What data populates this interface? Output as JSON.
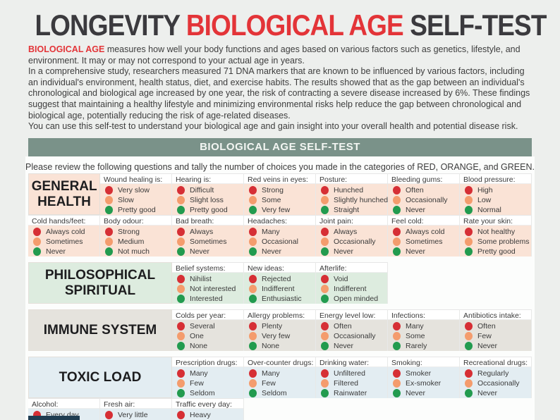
{
  "title": {
    "part1": "LONGEVITY ",
    "part2": "BIOLOGICAL AGE",
    "part3": " SELF-TEST"
  },
  "intro": {
    "lead": "BIOLOGICAL AGE",
    "p1_rest": " measures how well your body functions and ages based on various factors such as genetics, lifestyle, and environment. It may or may not correspond to your actual age in years.",
    "p2": "In a comprehensive study, researchers measured 71 DNA markers that are known to be influenced by various factors, including an individual's environment, health status, diet, and exercise habits. The results showed that as the gap between an individual's chronological and biological age increased by one year, the risk of contracting a severe disease increased by 6%. These findings suggest that maintaining a healthy lifestyle and minimizing environmental risks help reduce the gap between chronological and biological age, potentially reducing the risk of age-related diseases.",
    "p3": "You can use this self-test to understand your biological age and gain insight into your overall health and potential disease risk."
  },
  "banner": "BIOLOGICAL AGE SELF-TEST",
  "instruction": "Please review the following questions and tally the number of choices you made in the categories of RED, ORANGE, and GREEN.",
  "colors": {
    "accent_red": "#e33438",
    "banner_green": "#7a9289",
    "dot_red": "#d62f35",
    "dot_orange": "#f49c6d",
    "dot_green": "#229b4f",
    "section_peach": "#fae3d6",
    "section_green": "#ddecdf",
    "section_gray": "#e5e3dd",
    "section_blue": "#e3edf2"
  },
  "sections": [
    {
      "name": "GENERAL HEALTH",
      "bg": "#fae3d6",
      "rows": [
        {
          "label_span": 1,
          "questions": [
            {
              "q": "Wound healing is:",
              "options": [
                [
                  "red",
                  "Very slow"
                ],
                [
                  "orange",
                  "Slow"
                ],
                [
                  "green",
                  "Pretty good"
                ]
              ]
            },
            {
              "q": "Hearing is:",
              "options": [
                [
                  "red",
                  "Difficult"
                ],
                [
                  "orange",
                  "Slight loss"
                ],
                [
                  "green",
                  "Pretty good"
                ]
              ]
            },
            {
              "q": "Red veins in eyes:",
              "options": [
                [
                  "red",
                  "Strong"
                ],
                [
                  "orange",
                  "Some"
                ],
                [
                  "green",
                  "Very few"
                ]
              ]
            },
            {
              "q": "Posture:",
              "options": [
                [
                  "red",
                  "Hunched"
                ],
                [
                  "orange",
                  "Slightly hunched"
                ],
                [
                  "green",
                  "Straight"
                ]
              ]
            },
            {
              "q": "Bleeding gums:",
              "options": [
                [
                  "red",
                  "Often"
                ],
                [
                  "orange",
                  "Occasionally"
                ],
                [
                  "green",
                  "Never"
                ]
              ]
            },
            {
              "q": "Blood pressure:",
              "options": [
                [
                  "red",
                  "High"
                ],
                [
                  "orange",
                  "Low"
                ],
                [
                  "green",
                  "Normal"
                ]
              ]
            }
          ]
        },
        {
          "label_span": 0,
          "questions": [
            {
              "q": "Cold hands/feet:",
              "options": [
                [
                  "red",
                  "Always cold"
                ],
                [
                  "orange",
                  "Sometimes"
                ],
                [
                  "green",
                  "Never"
                ]
              ]
            },
            {
              "q": "Body odour:",
              "options": [
                [
                  "red",
                  "Strong"
                ],
                [
                  "orange",
                  "Medium"
                ],
                [
                  "green",
                  "Not much"
                ]
              ]
            },
            {
              "q": "Bad breath:",
              "options": [
                [
                  "red",
                  "Always"
                ],
                [
                  "orange",
                  "Sometimes"
                ],
                [
                  "green",
                  "Never"
                ]
              ]
            },
            {
              "q": "Headaches:",
              "options": [
                [
                  "red",
                  "Many"
                ],
                [
                  "orange",
                  "Occasional"
                ],
                [
                  "green",
                  "Never"
                ]
              ]
            },
            {
              "q": "Joint pain:",
              "options": [
                [
                  "red",
                  "Always"
                ],
                [
                  "orange",
                  "Occasionally"
                ],
                [
                  "green",
                  "Never"
                ]
              ]
            },
            {
              "q": "Feel cold:",
              "options": [
                [
                  "red",
                  "Always cold"
                ],
                [
                  "orange",
                  "Sometimes"
                ],
                [
                  "green",
                  "Never"
                ]
              ]
            },
            {
              "q": "Rate your skin:",
              "options": [
                [
                  "red",
                  "Not healthy"
                ],
                [
                  "orange",
                  "Some problems"
                ],
                [
                  "green",
                  "Pretty good"
                ]
              ]
            }
          ]
        }
      ]
    },
    {
      "name": "PHILOSOPHICAL SPIRITUAL",
      "bg": "#ddecdf",
      "rows": [
        {
          "label_span": 2,
          "questions": [
            {
              "q": "Belief systems:",
              "options": [
                [
                  "red",
                  "Nihilist"
                ],
                [
                  "orange",
                  "Not interested"
                ],
                [
                  "green",
                  "Interested"
                ]
              ]
            },
            {
              "q": "New ideas:",
              "options": [
                [
                  "red",
                  "Rejected"
                ],
                [
                  "orange",
                  "Indifferent"
                ],
                [
                  "green",
                  "Enthusiastic"
                ]
              ]
            },
            {
              "q": "Afterlife:",
              "options": [
                [
                  "red",
                  "Void"
                ],
                [
                  "orange",
                  "Indifferent"
                ],
                [
                  "green",
                  "Open minded"
                ]
              ]
            }
          ]
        }
      ]
    },
    {
      "name": "IMMUNE SYSTEM",
      "bg": "#e5e3dd",
      "rows": [
        {
          "label_span": 2,
          "questions": [
            {
              "q": "Colds per year:",
              "options": [
                [
                  "red",
                  "Several"
                ],
                [
                  "orange",
                  "One"
                ],
                [
                  "green",
                  "None"
                ]
              ]
            },
            {
              "q": "Allergy problems:",
              "options": [
                [
                  "red",
                  "Plenty"
                ],
                [
                  "orange",
                  "Very few"
                ],
                [
                  "green",
                  "None"
                ]
              ]
            },
            {
              "q": "Energy level low:",
              "options": [
                [
                  "red",
                  "Often"
                ],
                [
                  "orange",
                  "Occasionally"
                ],
                [
                  "green",
                  "Never"
                ]
              ]
            },
            {
              "q": "Infections:",
              "options": [
                [
                  "red",
                  "Many"
                ],
                [
                  "orange",
                  "Some"
                ],
                [
                  "green",
                  "Rarely"
                ]
              ]
            },
            {
              "q": "Antibiotics intake:",
              "options": [
                [
                  "red",
                  "Often"
                ],
                [
                  "orange",
                  "Few"
                ],
                [
                  "green",
                  "Never"
                ]
              ]
            }
          ]
        }
      ]
    },
    {
      "name": "TOXIC LOAD",
      "bg": "#e3edf2",
      "rows": [
        {
          "label_span": 2,
          "questions": [
            {
              "q": "Prescription drugs:",
              "options": [
                [
                  "red",
                  "Many"
                ],
                [
                  "orange",
                  "Few"
                ],
                [
                  "green",
                  "Seldom"
                ]
              ]
            },
            {
              "q": "Over-counter drugs:",
              "options": [
                [
                  "red",
                  "Many"
                ],
                [
                  "orange",
                  "Few"
                ],
                [
                  "green",
                  "Seldom"
                ]
              ]
            },
            {
              "q": "Drinking water:",
              "options": [
                [
                  "red",
                  "Unfiltered"
                ],
                [
                  "orange",
                  "Filtered"
                ],
                [
                  "green",
                  "Rainwater"
                ]
              ]
            },
            {
              "q": "Smoking:",
              "options": [
                [
                  "red",
                  "Smoker"
                ],
                [
                  "orange",
                  "Ex-smoker"
                ],
                [
                  "green",
                  "Never"
                ]
              ]
            },
            {
              "q": "Recreational drugs:",
              "options": [
                [
                  "red",
                  "Regularly"
                ],
                [
                  "orange",
                  "Occasionally"
                ],
                [
                  "green",
                  "Never"
                ]
              ]
            }
          ]
        },
        {
          "label_span": 0,
          "questions": [
            {
              "q": "Alcohol:",
              "options": [
                [
                  "red",
                  "Every day"
                ]
              ]
            },
            {
              "q": "Fresh air:",
              "options": [
                [
                  "red",
                  "Very little"
                ]
              ]
            },
            {
              "q": "Traffic every day:",
              "options": [
                [
                  "red",
                  "Heavy"
                ]
              ]
            }
          ]
        }
      ]
    }
  ]
}
